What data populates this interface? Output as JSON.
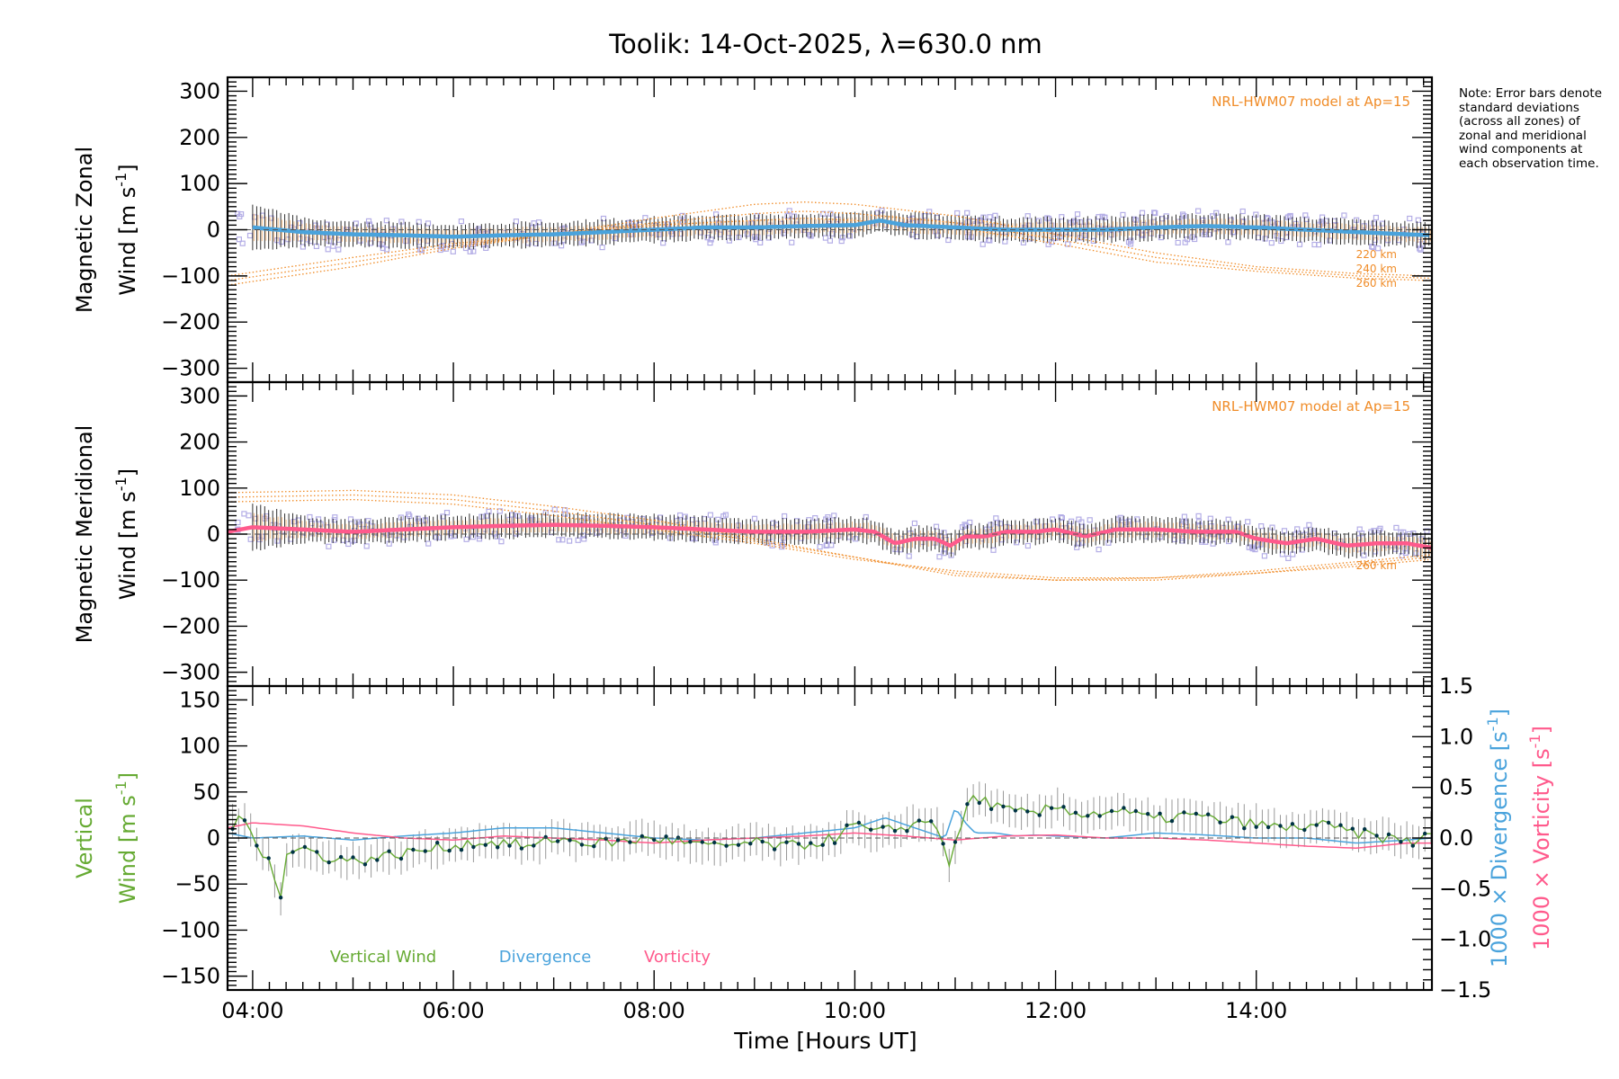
{
  "chart_data": {
    "type": "line",
    "title": "Toolik: 14-Oct-2025, λ=630.0 nm",
    "xlabel": "Time [Hours UT]",
    "xlim": [
      3.75,
      15.75
    ],
    "xticks": [
      4,
      6,
      8,
      10,
      12,
      14
    ],
    "xtick_labels": [
      "04:00",
      "06:00",
      "08:00",
      "10:00",
      "12:00",
      "14:00"
    ],
    "note": "Note: Error bars denote standard deviations (across all zones) of zonal and meridional wind components at each observation time.",
    "colors": {
      "model": "#f08c28",
      "zonal": "#4aa3dc",
      "meridional": "#ff5a8c",
      "vertical": "#66aa33",
      "divergence": "#4aa3dc",
      "vorticity": "#ff5a8c",
      "scatter": "#b4aee6",
      "vpoint": "#003344"
    },
    "panels": [
      {
        "id": "zonal",
        "ylabel_line1": "Magnetic Zonal",
        "ylabel_line2": "Wind [m s",
        "ylabel_sup": "-1",
        "ylabel_close": "]",
        "ylim": [
          -330,
          330
        ],
        "yticks": [
          -300,
          -200,
          -100,
          0,
          100,
          200,
          300
        ],
        "ytick_labels": [
          "−300",
          "−200",
          "−100",
          "0",
          "100",
          "200",
          "300"
        ],
        "model_label": "NRL-HWM07 model at Ap=15",
        "altitude_labels": [
          "220 km",
          "240 km",
          "260 km"
        ],
        "series": [
          {
            "name": "Zonal wind (mean)",
            "color": "#4aa3dc",
            "x": [
              4.0,
              4.5,
              5.0,
              5.5,
              6.0,
              6.5,
              7.0,
              7.5,
              8.0,
              8.5,
              9.0,
              9.5,
              10.0,
              10.25,
              10.5,
              11.0,
              11.5,
              12.0,
              12.5,
              13.0,
              13.5,
              14.0,
              14.5,
              15.0,
              15.5,
              15.75
            ],
            "y": [
              5,
              -5,
              -10,
              -12,
              -15,
              -12,
              -10,
              -5,
              0,
              5,
              5,
              8,
              10,
              20,
              10,
              5,
              0,
              0,
              0,
              5,
              8,
              5,
              0,
              -5,
              -10,
              -12
            ]
          },
          {
            "name": "HWM07 220 km",
            "color": "#f08c28",
            "x": [
              3.75,
              5.0,
              6.0,
              7.0,
              8.0,
              9.0,
              9.5,
              10.0,
              11.0,
              12.0,
              13.0,
              14.0,
              15.0,
              15.75
            ],
            "y": [
              -120,
              -80,
              -40,
              -10,
              25,
              55,
              60,
              55,
              30,
              -10,
              -50,
              -80,
              -95,
              -100
            ]
          },
          {
            "name": "HWM07 240 km",
            "color": "#f08c28",
            "x": [
              3.75,
              5.0,
              6.0,
              7.0,
              8.0,
              9.0,
              9.5,
              10.0,
              11.0,
              12.0,
              13.0,
              14.0,
              15.0,
              15.75
            ],
            "y": [
              -110,
              -70,
              -35,
              -10,
              15,
              35,
              40,
              35,
              15,
              -20,
              -60,
              -85,
              -100,
              -105
            ]
          },
          {
            "name": "HWM07 260 km",
            "color": "#f08c28",
            "x": [
              3.75,
              5.0,
              6.0,
              7.0,
              8.0,
              9.0,
              9.5,
              10.0,
              11.0,
              12.0,
              13.0,
              14.0,
              15.0,
              15.75
            ],
            "y": [
              -100,
              -60,
              -30,
              -10,
              10,
              20,
              25,
              20,
              5,
              -30,
              -70,
              -90,
              -105,
              -110
            ]
          }
        ]
      },
      {
        "id": "meridional",
        "ylabel_line1": "Magnetic Meridional",
        "ylabel_line2": "Wind [m s",
        "ylabel_sup": "-1",
        "ylabel_close": "]",
        "ylim": [
          -330,
          330
        ],
        "yticks": [
          -300,
          -200,
          -100,
          0,
          100,
          200,
          300
        ],
        "ytick_labels": [
          "−300",
          "−200",
          "−100",
          "0",
          "100",
          "200",
          "300"
        ],
        "model_label": "NRL-HWM07 model at Ap=15",
        "altitude_labels": [
          "260 km"
        ],
        "series": [
          {
            "name": "Meridional wind (mean)",
            "color": "#ff5a8c",
            "x": [
              3.75,
              4.0,
              4.5,
              5.0,
              5.5,
              6.0,
              6.5,
              7.0,
              7.5,
              8.0,
              8.5,
              9.0,
              9.5,
              10.0,
              10.2,
              10.4,
              10.6,
              10.8,
              10.95,
              11.1,
              11.3,
              11.5,
              11.8,
              12.0,
              12.3,
              12.6,
              13.0,
              13.4,
              13.8,
              14.0,
              14.3,
              14.6,
              14.9,
              15.2,
              15.5,
              15.75
            ],
            "y": [
              5,
              15,
              10,
              5,
              10,
              15,
              18,
              20,
              18,
              15,
              10,
              5,
              5,
              10,
              5,
              -20,
              -10,
              -10,
              -25,
              -5,
              -5,
              5,
              5,
              10,
              -5,
              10,
              10,
              5,
              5,
              -10,
              -20,
              -10,
              -25,
              -20,
              -20,
              -30
            ]
          },
          {
            "name": "HWM07 220 km",
            "color": "#f08c28",
            "x": [
              3.75,
              5.0,
              6.0,
              7.0,
              8.0,
              9.0,
              10.0,
              11.0,
              12.0,
              13.0,
              14.0,
              15.0,
              15.75
            ],
            "y": [
              90,
              95,
              85,
              60,
              30,
              -10,
              -50,
              -90,
              -100,
              -95,
              -80,
              -60,
              -45
            ]
          },
          {
            "name": "HWM07 240 km",
            "color": "#f08c28",
            "x": [
              3.75,
              5.0,
              6.0,
              7.0,
              8.0,
              9.0,
              10.0,
              11.0,
              12.0,
              13.0,
              14.0,
              15.0,
              15.75
            ],
            "y": [
              80,
              85,
              75,
              50,
              20,
              -15,
              -50,
              -85,
              -100,
              -100,
              -85,
              -65,
              -50
            ]
          },
          {
            "name": "HWM07 260 km",
            "color": "#f08c28",
            "x": [
              3.75,
              5.0,
              6.0,
              7.0,
              8.0,
              9.0,
              10.0,
              11.0,
              12.0,
              13.0,
              14.0,
              15.0,
              15.75
            ],
            "y": [
              70,
              75,
              65,
              40,
              10,
              -20,
              -55,
              -80,
              -95,
              -95,
              -85,
              -70,
              -55
            ]
          }
        ]
      },
      {
        "id": "vertical",
        "ylabel_line1": "Vertical",
        "ylabel_line2": "Wind [m s",
        "ylabel_sup": "-1",
        "ylabel_close": "]",
        "ylim": [
          -165,
          165
        ],
        "yticks": [
          -150,
          -100,
          -50,
          0,
          50,
          100,
          150
        ],
        "ytick_labels": [
          "−150",
          "−100",
          "−50",
          "0",
          "50",
          "100",
          "150"
        ],
        "y2lim": [
          -1.5,
          1.5
        ],
        "y2ticks": [
          -1.5,
          -1.0,
          -0.5,
          0.0,
          0.5,
          1.0,
          1.5
        ],
        "y2tick_labels": [
          "−1.5",
          "−1.0",
          "−0.5",
          "0.0",
          "0.5",
          "1.0",
          "1.5"
        ],
        "y2label_div": "1000 × Divergence [s",
        "y2label_vort": "1000 × Vorticity [s",
        "y2label_sup": "-1",
        "y2label_close": "]",
        "legend": [
          "Vertical Wind",
          "Divergence",
          "Vorticity"
        ],
        "series": [
          {
            "name": "Vertical Wind",
            "color": "#66aa33",
            "x": [
              3.8,
              3.9,
              4.0,
              4.1,
              4.2,
              4.26,
              4.33,
              4.5,
              4.7,
              5.0,
              5.3,
              5.6,
              5.9,
              6.2,
              6.5,
              6.8,
              7.0,
              7.3,
              7.6,
              8.0,
              8.3,
              8.6,
              9.0,
              9.3,
              9.6,
              9.8,
              10.0,
              10.2,
              10.4,
              10.6,
              10.8,
              10.95,
              11.05,
              11.15,
              11.3,
              11.5,
              11.8,
              12.0,
              12.3,
              12.6,
              13.0,
              13.3,
              13.6,
              14.0,
              14.3,
              14.6,
              15.0,
              15.3,
              15.6,
              15.75
            ],
            "y": [
              15,
              20,
              5,
              -15,
              -25,
              -78,
              -20,
              -10,
              -20,
              -25,
              -20,
              -15,
              -10,
              -5,
              -5,
              -10,
              0,
              -5,
              -5,
              0,
              -5,
              -10,
              -5,
              -10,
              -5,
              0,
              15,
              5,
              10,
              15,
              20,
              -30,
              10,
              45,
              40,
              30,
              25,
              35,
              25,
              30,
              20,
              25,
              20,
              15,
              10,
              15,
              5,
              0,
              -5,
              10
            ]
          },
          {
            "name": "Divergence",
            "color": "#4aa3dc",
            "x": [
              3.75,
              4.0,
              4.5,
              5.0,
              5.5,
              6.0,
              6.5,
              7.0,
              7.5,
              8.0,
              8.5,
              9.0,
              9.5,
              10.0,
              10.3,
              10.6,
              10.9,
              11.0,
              11.1,
              11.2,
              11.4,
              11.6,
              11.8,
              12.0,
              12.5,
              13.0,
              13.5,
              14.0,
              14.5,
              15.0,
              15.5,
              15.75
            ],
            "y": [
              0.05,
              0.0,
              0.02,
              -0.02,
              0.02,
              0.05,
              0.1,
              0.1,
              0.05,
              0.0,
              -0.02,
              0.0,
              0.05,
              0.1,
              0.2,
              0.1,
              0.0,
              0.3,
              0.15,
              0.05,
              0.05,
              0.02,
              0.03,
              0.02,
              0.0,
              0.05,
              0.03,
              0.0,
              0.0,
              -0.05,
              -0.02,
              0.0
            ]
          },
          {
            "name": "Vorticity",
            "color": "#ff5a8c",
            "x": [
              3.75,
              4.0,
              4.5,
              5.0,
              5.5,
              6.0,
              6.5,
              7.0,
              7.5,
              8.0,
              8.5,
              9.0,
              9.5,
              10.0,
              10.5,
              11.0,
              11.5,
              12.0,
              12.5,
              13.0,
              13.5,
              14.0,
              14.5,
              15.0,
              15.5,
              15.75
            ],
            "y": [
              0.1,
              0.15,
              0.12,
              0.05,
              0.0,
              -0.02,
              0.02,
              0.0,
              -0.02,
              -0.05,
              -0.02,
              0.0,
              0.02,
              0.05,
              0.02,
              -0.02,
              0.02,
              0.03,
              0.0,
              0.0,
              -0.02,
              -0.05,
              -0.08,
              -0.1,
              -0.05,
              -0.05
            ]
          }
        ]
      }
    ]
  }
}
